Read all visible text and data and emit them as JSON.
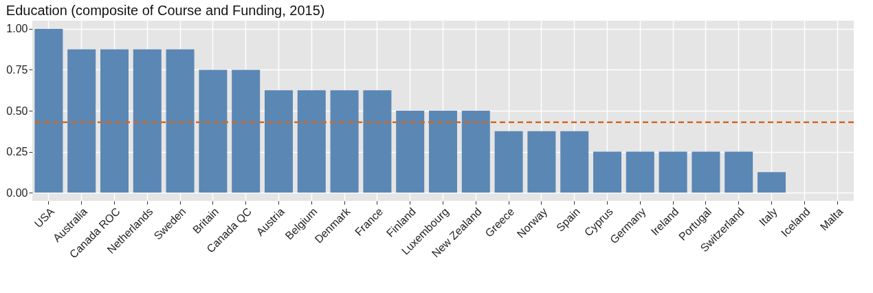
{
  "chart_data": {
    "type": "bar",
    "title": "Education (composite of Course and Funding, 2015)",
    "categories": [
      "USA",
      "Australia",
      "Canada ROC",
      "Netherlands",
      "Sweden",
      "Britain",
      "Canada QC",
      "Austria",
      "Belgium",
      "Denmark",
      "France",
      "Finland",
      "Luxembourg",
      "New Zealand",
      "Greece",
      "Norway",
      "Spain",
      "Cyprus",
      "Germany",
      "Ireland",
      "Portugal",
      "Switzerland",
      "Italy",
      "Iceland",
      "Malta"
    ],
    "values": [
      1,
      0.875,
      0.875,
      0.875,
      0.875,
      0.75,
      0.75,
      0.625,
      0.625,
      0.625,
      0.625,
      0.5,
      0.5,
      0.5,
      0.375,
      0.375,
      0.375,
      0.25,
      0.25,
      0.25,
      0.25,
      0.25,
      0.125,
      0,
      0
    ],
    "color": "#5b87b5",
    "ylim": [
      -0.05,
      1.05
    ],
    "yticks": [
      {
        "value": 0,
        "label": "0.00"
      },
      {
        "value": 0.25,
        "label": "0.25"
      },
      {
        "value": 0.5,
        "label": "0.50"
      },
      {
        "value": 0.75,
        "label": "0.75"
      },
      {
        "value": 1,
        "label": "1.00"
      }
    ],
    "ref_lines": [
      {
        "axis": "y",
        "value": 0.43,
        "label": null,
        "color": "#d2691e",
        "line_style": "dashed"
      }
    ],
    "grid": true
  }
}
